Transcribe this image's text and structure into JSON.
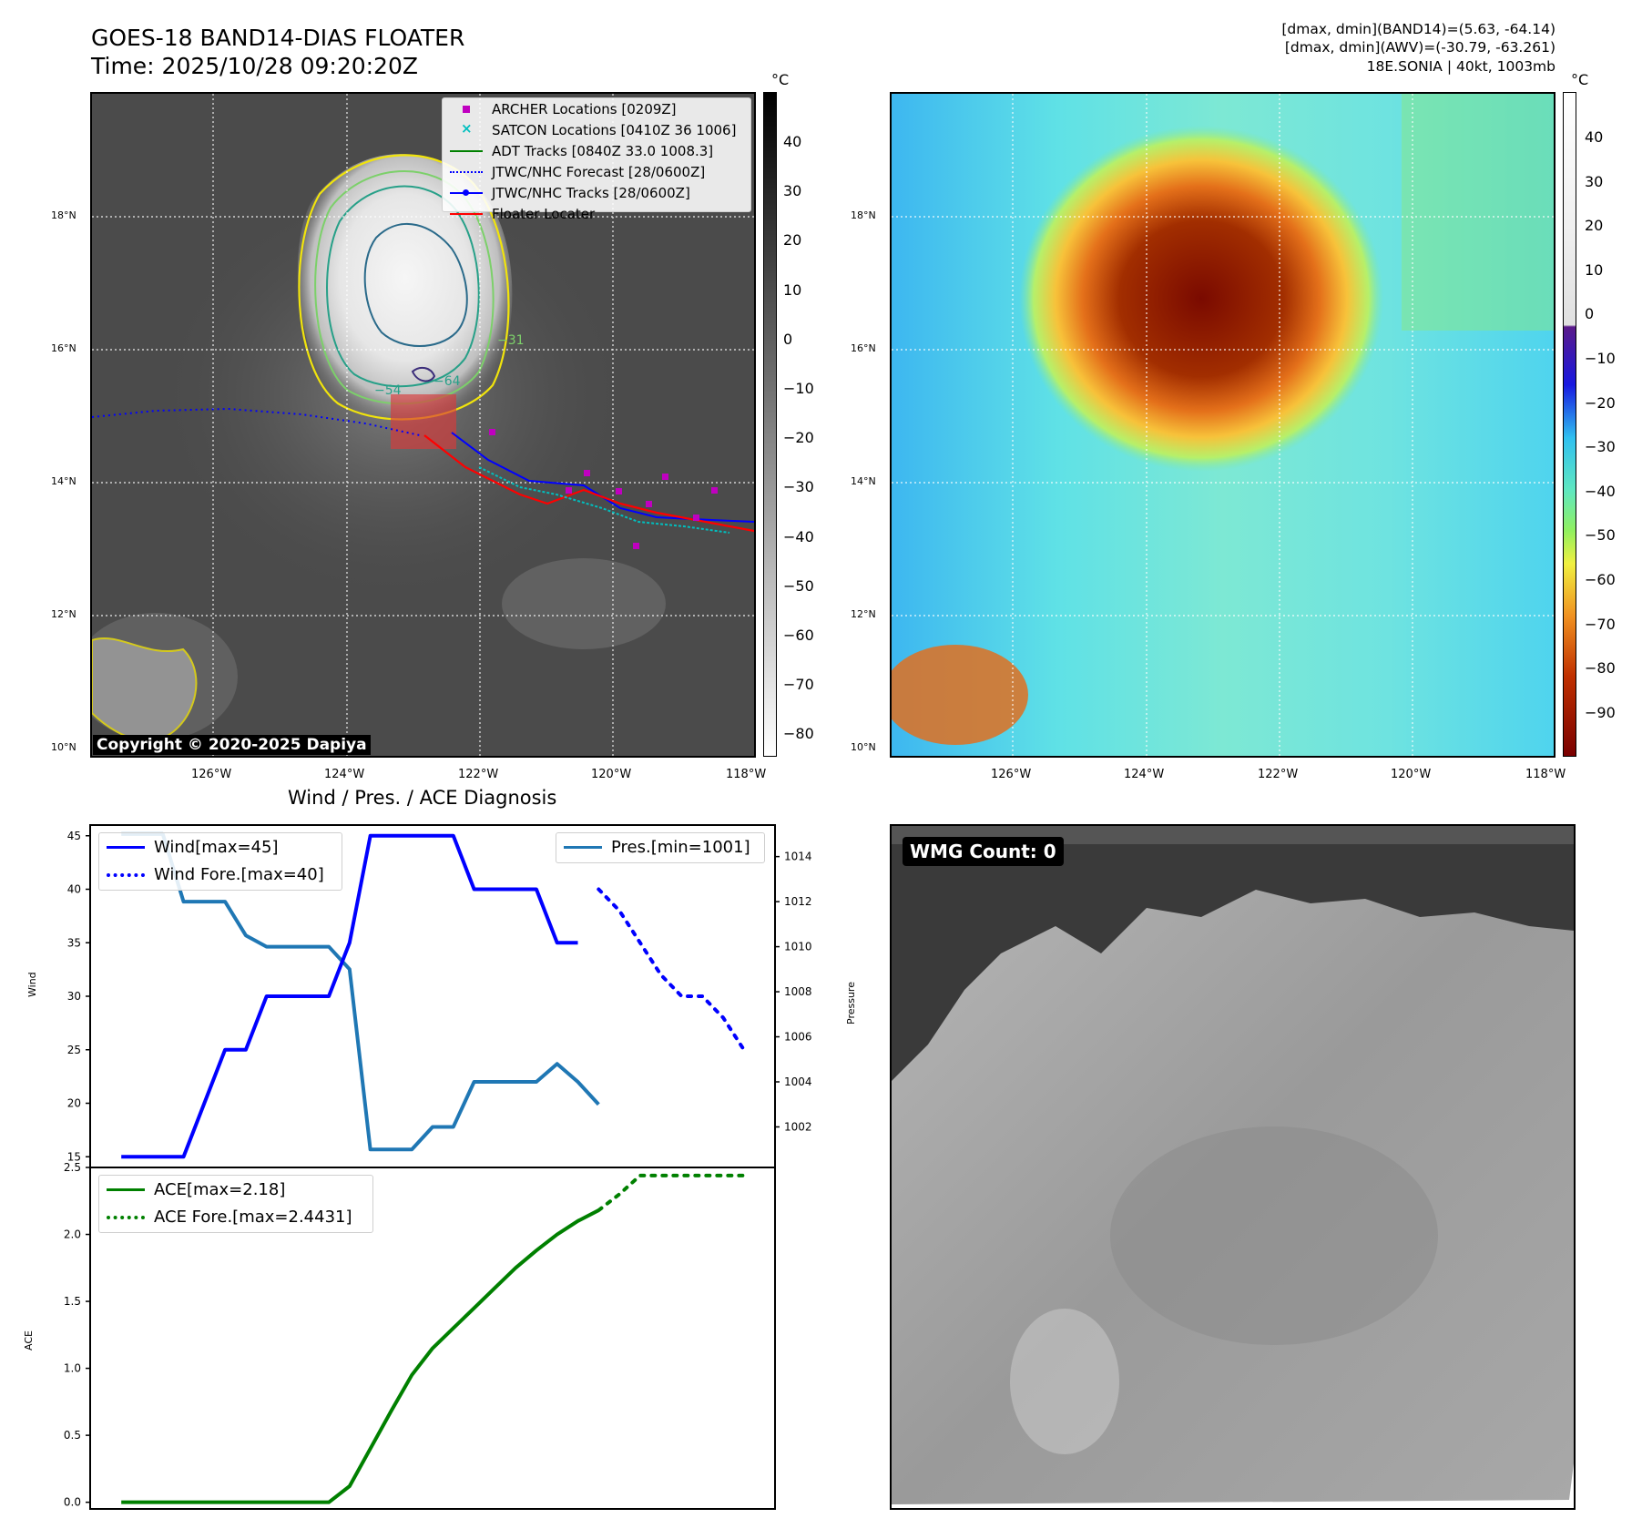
{
  "header": {
    "title_line1": "GOES-18 BAND14-DIAS FLOATER",
    "title_line2": "Time: 2025/10/28 09:20:20Z",
    "info_line1": "[dmax, dmin](BAND14)=(5.63, -64.14)",
    "info_line2": "[dmax, dmin](AWV)=(-30.79, -63.261)",
    "info_line3": "18E.SONIA | 40kt, 1003mb"
  },
  "map_axes": {
    "lat_labels": [
      "18°N",
      "16°N",
      "14°N",
      "12°N",
      "10°N"
    ],
    "lon_labels": [
      "126°W",
      "124°W",
      "122°W",
      "120°W",
      "118°W"
    ]
  },
  "ir_panel": {
    "colorbar_unit": "°C",
    "colorbar_ticks": [
      "40",
      "30",
      "20",
      "10",
      "0",
      "−10",
      "−20",
      "−30",
      "−40",
      "−50",
      "−60",
      "−70",
      "−80"
    ],
    "copyright": "Copyright © 2020-2025 Dapiya",
    "contour_labels": [
      "−54",
      "−64",
      "−31",
      "−54"
    ],
    "legend": [
      {
        "label": "ARCHER Locations [0209Z]",
        "icon": "magenta-square",
        "color": "#c000c0"
      },
      {
        "label": "SATCON Locations [0410Z 36 1006]",
        "icon": "cyan-x",
        "color": "#00bfbf"
      },
      {
        "label": "ADT Tracks [0840Z 33.0 1008.3]",
        "icon": "green-line",
        "color": "#008000"
      },
      {
        "label": "JTWC/NHC Forecast [28/0600Z]",
        "icon": "blue-dotted-line",
        "color": "#0000ff"
      },
      {
        "label": "JTWC/NHC Tracks [28/0600Z]",
        "icon": "blue-line-dot",
        "color": "#0000ff"
      },
      {
        "label": "Floater Locater",
        "icon": "red-line",
        "color": "#ff0000"
      }
    ]
  },
  "awv_panel": {
    "colorbar_unit": "°C",
    "colorbar_ticks": [
      "40",
      "30",
      "20",
      "10",
      "0",
      "−10",
      "−20",
      "−30",
      "−40",
      "−50",
      "−60",
      "−70",
      "−80",
      "−90"
    ]
  },
  "diagnosis": {
    "title": "Wind / Pres. / ACE Diagnosis",
    "wind_ylabel": "Wind",
    "pressure_ylabel": "Pressure",
    "ace_ylabel": "ACE",
    "wind_legend": [
      "Wind[max=45]",
      "Wind Fore.[max=40]"
    ],
    "pres_legend": [
      "Pres.[min=1001]"
    ],
    "ace_legend": [
      "ACE[max=2.18]",
      "ACE Fore.[max=2.4431]"
    ],
    "colors": {
      "wind": "#0000ff",
      "pressure": "#1f77b4",
      "ace": "#008000"
    }
  },
  "wmg_panel": {
    "badge": "WMG Count: 0"
  },
  "chart_data": [
    {
      "type": "line",
      "title": "Wind / Pres. / ACE Diagnosis",
      "ylabel": "Wind",
      "ylim": [
        14,
        46
      ],
      "x": [
        0,
        1,
        2,
        3,
        4,
        5,
        6,
        7,
        8,
        9,
        10,
        11,
        12,
        13,
        14,
        15,
        16,
        17,
        18,
        19,
        20,
        21,
        22,
        23,
        24,
        25,
        26,
        27,
        28,
        29,
        30
      ],
      "series": [
        {
          "name": "Wind[max=45]",
          "x": [
            0,
            1,
            2,
            3,
            4,
            5,
            6,
            7,
            8,
            9,
            10,
            11,
            12,
            13,
            14,
            15,
            16,
            17,
            18,
            19,
            20,
            21,
            22
          ],
          "values": [
            15,
            15,
            15,
            15,
            20,
            25,
            25,
            30,
            30,
            30,
            30,
            35,
            45,
            45,
            45,
            45,
            45,
            40,
            40,
            40,
            40,
            35,
            35
          ]
        },
        {
          "name": "Wind Fore.[max=40]",
          "x": [
            23,
            24,
            25,
            26,
            27,
            28,
            29,
            30
          ],
          "values": [
            40,
            38,
            35,
            32,
            30,
            30,
            28,
            25
          ]
        }
      ]
    },
    {
      "type": "line",
      "ylabel": "Pressure",
      "ylim": [
        1000.2,
        1015.4
      ],
      "yticks": [
        1002,
        1004,
        1006,
        1008,
        1010,
        1012,
        1014
      ],
      "series": [
        {
          "name": "Pres.[min=1001]",
          "x": [
            0,
            1,
            2,
            3,
            4,
            5,
            6,
            7,
            8,
            9,
            10,
            11,
            12,
            13,
            14,
            15,
            16,
            17,
            18,
            19,
            20,
            21,
            22,
            23
          ],
          "values": [
            1015,
            1015,
            1015,
            1012,
            1012,
            1012,
            1010.5,
            1010,
            1010,
            1010,
            1010,
            1009,
            1001,
            1001,
            1001,
            1002,
            1002,
            1004,
            1004,
            1004,
            1004,
            1004.8,
            1004,
            1003
          ]
        }
      ]
    },
    {
      "type": "line",
      "ylabel": "ACE",
      "ylim": [
        -0.05,
        2.5
      ],
      "yticks": [
        0.0,
        0.5,
        1.0,
        1.5,
        2.0,
        2.5
      ],
      "series": [
        {
          "name": "ACE[max=2.18]",
          "x": [
            0,
            1,
            2,
            3,
            4,
            5,
            6,
            7,
            8,
            9,
            10,
            11,
            12,
            13,
            14,
            15,
            16,
            17,
            18,
            19,
            20,
            21,
            22,
            23
          ],
          "values": [
            0,
            0,
            0,
            0,
            0,
            0,
            0,
            0,
            0,
            0,
            0,
            0.12,
            0.4,
            0.68,
            0.95,
            1.15,
            1.3,
            1.45,
            1.6,
            1.75,
            1.88,
            2.0,
            2.1,
            2.18
          ]
        },
        {
          "name": "ACE Fore.[max=2.4431]",
          "x": [
            23,
            24,
            25,
            26,
            27,
            28,
            29,
            30
          ],
          "values": [
            2.18,
            2.3,
            2.44,
            2.44,
            2.44,
            2.44,
            2.44,
            2.44
          ]
        }
      ]
    }
  ]
}
